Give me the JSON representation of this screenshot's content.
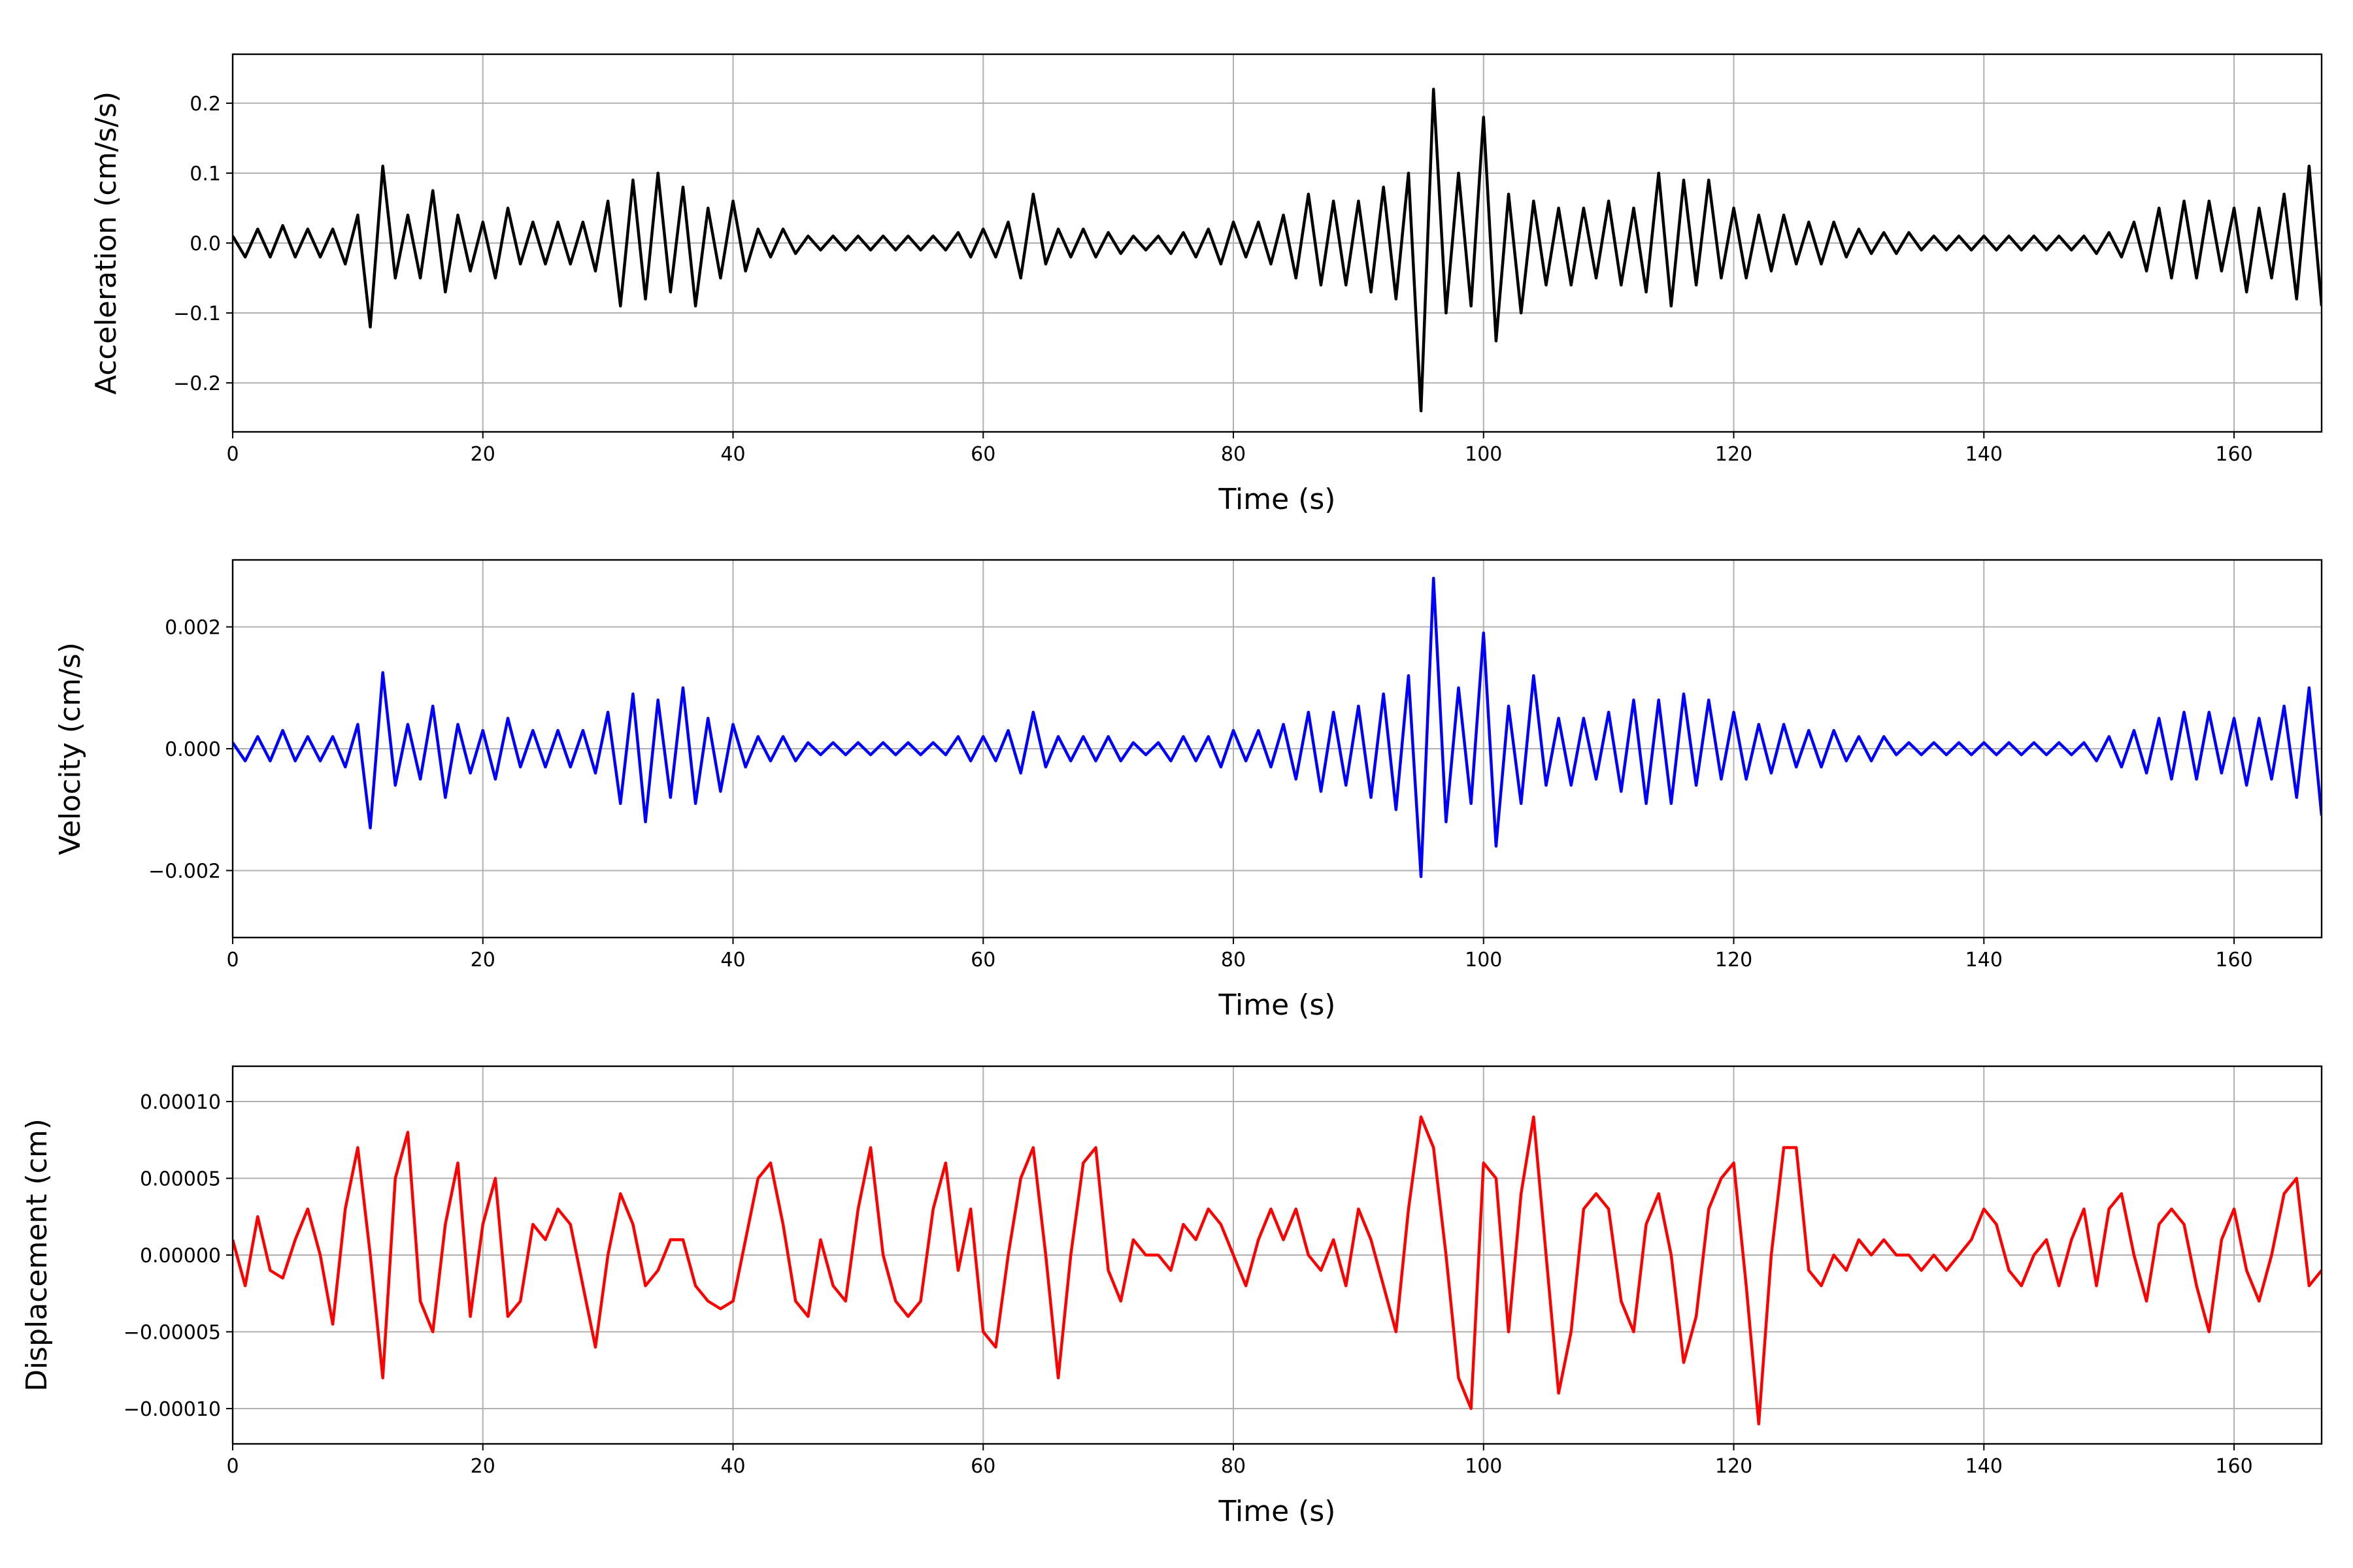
{
  "chart_data": [
    {
      "type": "line",
      "xlabel": "Time (s)",
      "ylabel": "Acceleration (cm/s/s)",
      "color": "#000000",
      "grid": true,
      "xlim": [
        0,
        167
      ],
      "xticks": [
        0,
        20,
        40,
        60,
        80,
        100,
        120,
        140,
        160
      ],
      "ylim": [
        -0.27,
        0.27
      ],
      "yticks": [
        {
          "value": -0.2,
          "label": "−0.2"
        },
        {
          "value": -0.1,
          "label": "−0.1"
        },
        {
          "value": 0,
          "label": "0.0"
        },
        {
          "value": 0.1,
          "label": "0.1"
        },
        {
          "value": 0.2,
          "label": "0.2"
        }
      ],
      "x": [
        0,
        1,
        2,
        3,
        4,
        5,
        6,
        7,
        8,
        9,
        10,
        11,
        12,
        13,
        14,
        15,
        16,
        17,
        18,
        19,
        20,
        21,
        22,
        23,
        24,
        25,
        26,
        27,
        28,
        29,
        30,
        31,
        32,
        33,
        34,
        35,
        36,
        37,
        38,
        39,
        40,
        41,
        42,
        43,
        44,
        45,
        46,
        47,
        48,
        49,
        50,
        51,
        52,
        53,
        54,
        55,
        56,
        57,
        58,
        59,
        60,
        61,
        62,
        63,
        64,
        65,
        66,
        67,
        68,
        69,
        70,
        71,
        72,
        73,
        74,
        75,
        76,
        77,
        78,
        79,
        80,
        81,
        82,
        83,
        84,
        85,
        86,
        87,
        88,
        89,
        90,
        91,
        92,
        93,
        94,
        95,
        96,
        97,
        98,
        99,
        100,
        101,
        102,
        103,
        104,
        105,
        106,
        107,
        108,
        109,
        110,
        111,
        112,
        113,
        114,
        115,
        116,
        117,
        118,
        119,
        120,
        121,
        122,
        123,
        124,
        125,
        126,
        127,
        128,
        129,
        130,
        131,
        132,
        133,
        134,
        135,
        136,
        137,
        138,
        139,
        140,
        141,
        142,
        143,
        144,
        145,
        146,
        147,
        148,
        149,
        150,
        151,
        152,
        153,
        154,
        155,
        156,
        157,
        158,
        159,
        160,
        161,
        162,
        163,
        164,
        165,
        166,
        167
      ],
      "values": [
        0.01,
        -0.02,
        0.02,
        -0.02,
        0.025,
        -0.02,
        0.02,
        -0.02,
        0.02,
        -0.03,
        0.04,
        -0.12,
        0.11,
        -0.05,
        0.04,
        -0.05,
        0.075,
        -0.07,
        0.04,
        -0.04,
        0.03,
        -0.05,
        0.05,
        -0.03,
        0.03,
        -0.03,
        0.03,
        -0.03,
        0.03,
        -0.04,
        0.06,
        -0.09,
        0.09,
        -0.08,
        0.1,
        -0.07,
        0.08,
        -0.09,
        0.05,
        -0.05,
        0.06,
        -0.04,
        0.02,
        -0.02,
        0.02,
        -0.015,
        0.01,
        -0.01,
        0.01,
        -0.01,
        0.01,
        -0.01,
        0.01,
        -0.01,
        0.01,
        -0.01,
        0.01,
        -0.01,
        0.015,
        -0.02,
        0.02,
        -0.02,
        0.03,
        -0.05,
        0.07,
        -0.03,
        0.02,
        -0.02,
        0.02,
        -0.02,
        0.015,
        -0.015,
        0.01,
        -0.01,
        0.01,
        -0.015,
        0.015,
        -0.02,
        0.02,
        -0.03,
        0.03,
        -0.02,
        0.03,
        -0.03,
        0.04,
        -0.05,
        0.07,
        -0.06,
        0.06,
        -0.06,
        0.06,
        -0.07,
        0.08,
        -0.08,
        0.1,
        -0.24,
        0.22,
        -0.1,
        0.1,
        -0.09,
        0.18,
        -0.14,
        0.07,
        -0.1,
        0.06,
        -0.06,
        0.05,
        -0.06,
        0.05,
        -0.05,
        0.06,
        -0.06,
        0.05,
        -0.07,
        0.1,
        -0.09,
        0.09,
        -0.06,
        0.09,
        -0.05,
        0.05,
        -0.05,
        0.04,
        -0.04,
        0.04,
        -0.03,
        0.03,
        -0.03,
        0.03,
        -0.02,
        0.02,
        -0.015,
        0.015,
        -0.015,
        0.015,
        -0.01,
        0.01,
        -0.01,
        0.01,
        -0.01,
        0.01,
        -0.01,
        0.01,
        -0.01,
        0.01,
        -0.01,
        0.01,
        -0.01,
        0.01,
        -0.015,
        0.015,
        -0.02,
        0.03,
        -0.04,
        0.05,
        -0.05,
        0.06,
        -0.05,
        0.06,
        -0.04,
        0.05,
        -0.07,
        0.05,
        -0.05,
        0.07,
        -0.08,
        0.11,
        -0.09
      ]
    },
    {
      "type": "line",
      "xlabel": "Time (s)",
      "ylabel": "Velocity (cm/s)",
      "color": "#0000ff",
      "grid": true,
      "xlim": [
        0,
        167
      ],
      "xticks": [
        0,
        20,
        40,
        60,
        80,
        100,
        120,
        140,
        160
      ],
      "ylim": [
        -0.0031,
        0.0031
      ],
      "yticks": [
        {
          "value": -0.002,
          "label": "−0.002"
        },
        {
          "value": 0,
          "label": "0.000"
        },
        {
          "value": 0.002,
          "label": "0.002"
        }
      ],
      "x": [
        0,
        1,
        2,
        3,
        4,
        5,
        6,
        7,
        8,
        9,
        10,
        11,
        12,
        13,
        14,
        15,
        16,
        17,
        18,
        19,
        20,
        21,
        22,
        23,
        24,
        25,
        26,
        27,
        28,
        29,
        30,
        31,
        32,
        33,
        34,
        35,
        36,
        37,
        38,
        39,
        40,
        41,
        42,
        43,
        44,
        45,
        46,
        47,
        48,
        49,
        50,
        51,
        52,
        53,
        54,
        55,
        56,
        57,
        58,
        59,
        60,
        61,
        62,
        63,
        64,
        65,
        66,
        67,
        68,
        69,
        70,
        71,
        72,
        73,
        74,
        75,
        76,
        77,
        78,
        79,
        80,
        81,
        82,
        83,
        84,
        85,
        86,
        87,
        88,
        89,
        90,
        91,
        92,
        93,
        94,
        95,
        96,
        97,
        98,
        99,
        100,
        101,
        102,
        103,
        104,
        105,
        106,
        107,
        108,
        109,
        110,
        111,
        112,
        113,
        114,
        115,
        116,
        117,
        118,
        119,
        120,
        121,
        122,
        123,
        124,
        125,
        126,
        127,
        128,
        129,
        130,
        131,
        132,
        133,
        134,
        135,
        136,
        137,
        138,
        139,
        140,
        141,
        142,
        143,
        144,
        145,
        146,
        147,
        148,
        149,
        150,
        151,
        152,
        153,
        154,
        155,
        156,
        157,
        158,
        159,
        160,
        161,
        162,
        163,
        164,
        165,
        166,
        167
      ],
      "values": [
        0.0001,
        -0.0002,
        0.0002,
        -0.0002,
        0.0003,
        -0.0002,
        0.0002,
        -0.0002,
        0.0002,
        -0.0003,
        0.0004,
        -0.0013,
        0.00125,
        -0.0006,
        0.0004,
        -0.0005,
        0.0007,
        -0.0008,
        0.0004,
        -0.0004,
        0.0003,
        -0.0005,
        0.0005,
        -0.0003,
        0.0003,
        -0.0003,
        0.0003,
        -0.0003,
        0.0003,
        -0.0004,
        0.0006,
        -0.0009,
        0.0009,
        -0.0012,
        0.0008,
        -0.0008,
        0.001,
        -0.0009,
        0.0005,
        -0.0007,
        0.0004,
        -0.0003,
        0.0002,
        -0.0002,
        0.0002,
        -0.0002,
        0.0001,
        -0.0001,
        0.0001,
        -0.0001,
        0.0001,
        -0.0001,
        0.0001,
        -0.0001,
        0.0001,
        -0.0001,
        0.0001,
        -0.0001,
        0.0002,
        -0.0002,
        0.0002,
        -0.0002,
        0.0003,
        -0.0004,
        0.0006,
        -0.0003,
        0.0002,
        -0.0002,
        0.0002,
        -0.0002,
        0.0002,
        -0.0002,
        0.0001,
        -0.0001,
        0.0001,
        -0.0002,
        0.0002,
        -0.0002,
        0.0002,
        -0.0003,
        0.0003,
        -0.0002,
        0.0003,
        -0.0003,
        0.0004,
        -0.0005,
        0.0006,
        -0.0007,
        0.0006,
        -0.0006,
        0.0007,
        -0.0008,
        0.0009,
        -0.001,
        0.0012,
        -0.0021,
        0.0028,
        -0.0012,
        0.001,
        -0.0009,
        0.0019,
        -0.0016,
        0.0007,
        -0.0009,
        0.0012,
        -0.0006,
        0.0005,
        -0.0006,
        0.0005,
        -0.0005,
        0.0006,
        -0.0007,
        0.0008,
        -0.0009,
        0.0008,
        -0.0009,
        0.0009,
        -0.0006,
        0.0008,
        -0.0005,
        0.0006,
        -0.0005,
        0.0004,
        -0.0004,
        0.0004,
        -0.0003,
        0.0003,
        -0.0003,
        0.0003,
        -0.0002,
        0.0002,
        -0.0002,
        0.0002,
        -0.0001,
        0.0001,
        -0.0001,
        0.0001,
        -0.0001,
        0.0001,
        -0.0001,
        0.0001,
        -0.0001,
        0.0001,
        -0.0001,
        0.0001,
        -0.0001,
        0.0001,
        -0.0001,
        0.0001,
        -0.0002,
        0.0002,
        -0.0003,
        0.0003,
        -0.0004,
        0.0005,
        -0.0005,
        0.0006,
        -0.0005,
        0.0006,
        -0.0004,
        0.0005,
        -0.0006,
        0.0005,
        -0.0005,
        0.0007,
        -0.0008,
        0.001,
        -0.0011
      ]
    },
    {
      "type": "line",
      "xlabel": "Time (s)",
      "ylabel": "Displacement (cm)",
      "color": "#ff0000",
      "grid": true,
      "xlim": [
        0,
        167
      ],
      "xticks": [
        0,
        20,
        40,
        60,
        80,
        100,
        120,
        140,
        160
      ],
      "ylim": [
        -0.000123,
        0.000123
      ],
      "yticks": [
        {
          "value": -0.0001,
          "label": "−0.00010"
        },
        {
          "value": -5e-05,
          "label": "−0.00005"
        },
        {
          "value": 0,
          "label": "0.00000"
        },
        {
          "value": 5e-05,
          "label": "0.00005"
        },
        {
          "value": 0.0001,
          "label": "0.00010"
        }
      ],
      "x": [
        0,
        1,
        2,
        3,
        4,
        5,
        6,
        7,
        8,
        9,
        10,
        11,
        12,
        13,
        14,
        15,
        16,
        17,
        18,
        19,
        20,
        21,
        22,
        23,
        24,
        25,
        26,
        27,
        28,
        29,
        30,
        31,
        32,
        33,
        34,
        35,
        36,
        37,
        38,
        39,
        40,
        41,
        42,
        43,
        44,
        45,
        46,
        47,
        48,
        49,
        50,
        51,
        52,
        53,
        54,
        55,
        56,
        57,
        58,
        59,
        60,
        61,
        62,
        63,
        64,
        65,
        66,
        67,
        68,
        69,
        70,
        71,
        72,
        73,
        74,
        75,
        76,
        77,
        78,
        79,
        80,
        81,
        82,
        83,
        84,
        85,
        86,
        87,
        88,
        89,
        90,
        91,
        92,
        93,
        94,
        95,
        96,
        97,
        98,
        99,
        100,
        101,
        102,
        103,
        104,
        105,
        106,
        107,
        108,
        109,
        110,
        111,
        112,
        113,
        114,
        115,
        116,
        117,
        118,
        119,
        120,
        121,
        122,
        123,
        124,
        125,
        126,
        127,
        128,
        129,
        130,
        131,
        132,
        133,
        134,
        135,
        136,
        137,
        138,
        139,
        140,
        141,
        142,
        143,
        144,
        145,
        146,
        147,
        148,
        149,
        150,
        151,
        152,
        153,
        154,
        155,
        156,
        157,
        158,
        159,
        160,
        161,
        162,
        163,
        164,
        165,
        166,
        167
      ],
      "values": [
        1e-05,
        -2e-05,
        2.5e-05,
        -1e-05,
        -1.5e-05,
        1e-05,
        3e-05,
        0,
        -4.5e-05,
        3e-05,
        7e-05,
        0,
        -8e-05,
        5e-05,
        8e-05,
        -3e-05,
        -5e-05,
        2e-05,
        6e-05,
        -4e-05,
        2e-05,
        5e-05,
        -4e-05,
        -3e-05,
        2e-05,
        1e-05,
        3e-05,
        2e-05,
        -2e-05,
        -6e-05,
        0,
        4e-05,
        2e-05,
        -2e-05,
        -1e-05,
        1e-05,
        1e-05,
        -2e-05,
        -3e-05,
        -3.5e-05,
        -3e-05,
        1e-05,
        5e-05,
        6e-05,
        2e-05,
        -3e-05,
        -4e-05,
        1e-05,
        -2e-05,
        -3e-05,
        3e-05,
        7e-05,
        0,
        -3e-05,
        -4e-05,
        -3e-05,
        3e-05,
        6e-05,
        -1e-05,
        3e-05,
        -5e-05,
        -6e-05,
        0,
        5e-05,
        7e-05,
        0,
        -8e-05,
        0,
        6e-05,
        7e-05,
        -1e-05,
        -3e-05,
        1e-05,
        0,
        0,
        -1e-05,
        2e-05,
        1e-05,
        3e-05,
        2e-05,
        0,
        -2e-05,
        1e-05,
        3e-05,
        1e-05,
        3e-05,
        0,
        -1e-05,
        1e-05,
        -2e-05,
        3e-05,
        1e-05,
        -2e-05,
        -5e-05,
        3e-05,
        9e-05,
        7e-05,
        0,
        -8e-05,
        -0.0001,
        6e-05,
        5e-05,
        -5e-05,
        4e-05,
        9e-05,
        0,
        -9e-05,
        -5e-05,
        3e-05,
        4e-05,
        3e-05,
        -3e-05,
        -5e-05,
        2e-05,
        4e-05,
        0,
        -7e-05,
        -4e-05,
        3e-05,
        5e-05,
        6e-05,
        -2e-05,
        -0.00011,
        0,
        7e-05,
        7e-05,
        -1e-05,
        -2e-05,
        0,
        -1e-05,
        1e-05,
        0,
        1e-05,
        0,
        0,
        -1e-05,
        0,
        -1e-05,
        0,
        1e-05,
        3e-05,
        2e-05,
        -1e-05,
        -2e-05,
        0,
        1e-05,
        -2e-05,
        1e-05,
        3e-05,
        -2e-05,
        3e-05,
        4e-05,
        0,
        -3e-05,
        2e-05,
        3e-05,
        2e-05,
        -2e-05,
        -5e-05,
        1e-05,
        3e-05,
        -1e-05,
        -3e-05,
        0,
        4e-05,
        5e-05,
        -2e-05,
        -1e-05
      ]
    }
  ]
}
